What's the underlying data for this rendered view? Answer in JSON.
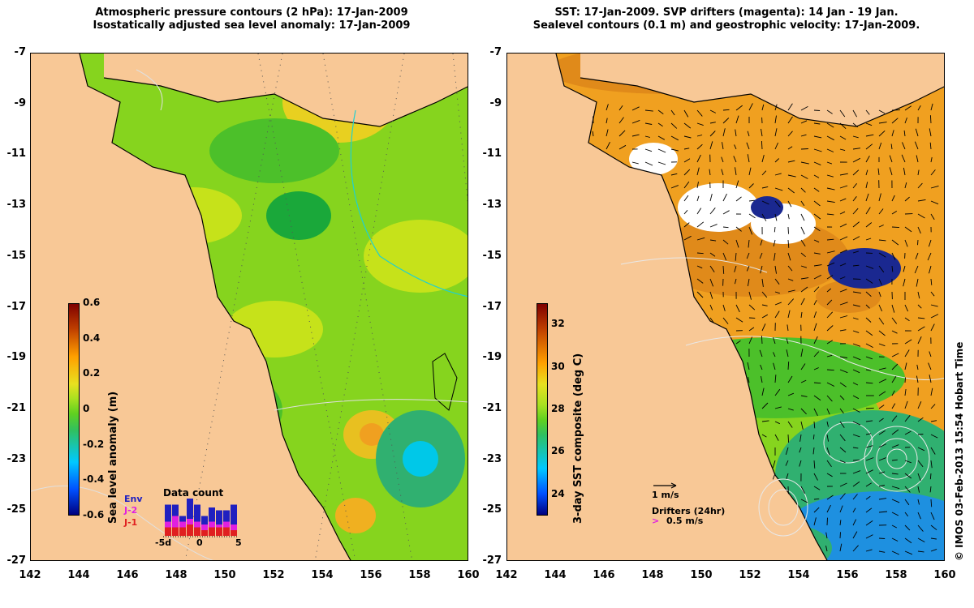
{
  "left_panel": {
    "title_line1": "Atmospheric pressure contours (2 hPa): 17-Jan-2009",
    "title_line2": "Isostatically adjusted sea level anomaly: 17-Jan-2009",
    "colorbar_label": "Sea level anomaly (m)",
    "colorbar_ticks": [
      "0.6",
      "0.4",
      "0.2",
      "0",
      "-0.2",
      "-0.4",
      "-0.6"
    ],
    "data_count": {
      "title": "Data count",
      "legend": [
        {
          "label": "Env",
          "color": "#2020c0"
        },
        {
          "label": "J-2",
          "color": "#e020e0"
        },
        {
          "label": "J-1",
          "color": "#e02020"
        }
      ],
      "axis_ticks": [
        "-5d",
        "0",
        "5"
      ],
      "bars": [
        {
          "j1": 3,
          "j2": 2,
          "env": 6
        },
        {
          "j1": 3,
          "j2": 4,
          "env": 4
        },
        {
          "j1": 3,
          "j2": 2,
          "env": 2
        },
        {
          "j1": 4,
          "j2": 2,
          "env": 8
        },
        {
          "j1": 3,
          "j2": 2,
          "env": 6
        },
        {
          "j1": 2,
          "j2": 2,
          "env": 3
        },
        {
          "j1": 3,
          "j2": 2,
          "env": 5
        },
        {
          "j1": 3,
          "j2": 1,
          "env": 5
        },
        {
          "j1": 3,
          "j2": 2,
          "env": 4
        },
        {
          "j1": 2,
          "j2": 2,
          "env": 7
        }
      ]
    },
    "colors": [
      "#00007f",
      "#0050ff",
      "#00c8ff",
      "#30c060",
      "#60d020",
      "#a8e020",
      "#e8e020",
      "#ffa000",
      "#c04000",
      "#7f0000"
    ]
  },
  "right_panel": {
    "title_line1": "SST: 17-Jan-2009. SVP drifters (magenta): 14 Jan - 19 Jan.",
    "title_line2": "Sealevel contours (0.1 m) and geostrophic velocity: 17-Jan-2009.",
    "colorbar_label": "3-day SST composite (deg C)",
    "colorbar_ticks": [
      "32",
      "30",
      "28",
      "26",
      "24"
    ],
    "vector_scale_label": "1 m/s",
    "drifters_label": "Drifters (24hr)",
    "drifters_scale_label": "0.5 m/s",
    "drifters_symbol": ">"
  },
  "axes": {
    "y_ticks": [
      "-7",
      "-9",
      "-11",
      "-13",
      "-15",
      "-17",
      "-19",
      "-21",
      "-23",
      "-25",
      "-27"
    ],
    "x_ticks": [
      "142",
      "144",
      "146",
      "148",
      "150",
      "152",
      "154",
      "156",
      "158",
      "160"
    ]
  },
  "credit": "© IMOS 03-Feb-2013 15:54 Hobart Time",
  "palette": {
    "land": "#f8c896",
    "sla_greens": [
      "#1aa83a",
      "#4cc02a",
      "#86d41e",
      "#c6e21a"
    ],
    "sst_oranges": [
      "#e08a1a",
      "#f0a020",
      "#f6c020"
    ]
  }
}
